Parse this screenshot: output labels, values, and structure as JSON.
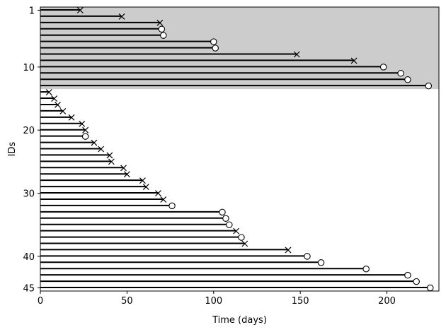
{
  "chart_data": {
    "type": "swimmer",
    "xlabel": "Time (days)",
    "ylabel": "IDs",
    "xlim": [
      0,
      230
    ],
    "ylim": [
      45.5,
      0.5
    ],
    "x_ticks": [
      0,
      50,
      100,
      150,
      200
    ],
    "y_ticks": [
      1,
      10,
      20,
      30,
      40,
      45
    ],
    "shaded_region": {
      "id_from": 1,
      "id_to": 13,
      "color": "#cccccc"
    },
    "marker_legend": {
      "event": "x",
      "censored": "open circle"
    },
    "series": [
      {
        "id": 1,
        "time": 23,
        "marker": "event"
      },
      {
        "id": 2,
        "time": 47,
        "marker": "event"
      },
      {
        "id": 3,
        "time": 69,
        "marker": "event"
      },
      {
        "id": 4,
        "time": 70,
        "marker": "censored"
      },
      {
        "id": 5,
        "time": 71,
        "marker": "censored"
      },
      {
        "id": 6,
        "time": 100,
        "marker": "censored"
      },
      {
        "id": 7,
        "time": 101,
        "marker": "censored"
      },
      {
        "id": 8,
        "time": 148,
        "marker": "event"
      },
      {
        "id": 9,
        "time": 181,
        "marker": "event"
      },
      {
        "id": 10,
        "time": 198,
        "marker": "censored"
      },
      {
        "id": 11,
        "time": 208,
        "marker": "censored"
      },
      {
        "id": 12,
        "time": 212,
        "marker": "censored"
      },
      {
        "id": 13,
        "time": 224,
        "marker": "censored"
      },
      {
        "id": 14,
        "time": 5,
        "marker": "event"
      },
      {
        "id": 15,
        "time": 8,
        "marker": "event"
      },
      {
        "id": 16,
        "time": 10,
        "marker": "event"
      },
      {
        "id": 17,
        "time": 13,
        "marker": "event"
      },
      {
        "id": 18,
        "time": 18,
        "marker": "event"
      },
      {
        "id": 19,
        "time": 24,
        "marker": "event"
      },
      {
        "id": 20,
        "time": 26,
        "marker": "event"
      },
      {
        "id": 21,
        "time": 26,
        "marker": "censored"
      },
      {
        "id": 22,
        "time": 31,
        "marker": "event"
      },
      {
        "id": 23,
        "time": 35,
        "marker": "event"
      },
      {
        "id": 24,
        "time": 40,
        "marker": "event"
      },
      {
        "id": 25,
        "time": 41,
        "marker": "event"
      },
      {
        "id": 26,
        "time": 48,
        "marker": "event"
      },
      {
        "id": 27,
        "time": 50,
        "marker": "event"
      },
      {
        "id": 28,
        "time": 59,
        "marker": "event"
      },
      {
        "id": 29,
        "time": 61,
        "marker": "event"
      },
      {
        "id": 30,
        "time": 68,
        "marker": "event"
      },
      {
        "id": 31,
        "time": 71,
        "marker": "event"
      },
      {
        "id": 32,
        "time": 76,
        "marker": "censored"
      },
      {
        "id": 33,
        "time": 105,
        "marker": "censored"
      },
      {
        "id": 34,
        "time": 107,
        "marker": "censored"
      },
      {
        "id": 35,
        "time": 109,
        "marker": "censored"
      },
      {
        "id": 36,
        "time": 113,
        "marker": "event"
      },
      {
        "id": 37,
        "time": 116,
        "marker": "censored"
      },
      {
        "id": 38,
        "time": 118,
        "marker": "event"
      },
      {
        "id": 39,
        "time": 143,
        "marker": "event"
      },
      {
        "id": 40,
        "time": 154,
        "marker": "censored"
      },
      {
        "id": 41,
        "time": 162,
        "marker": "censored"
      },
      {
        "id": 42,
        "time": 188,
        "marker": "censored"
      },
      {
        "id": 43,
        "time": 212,
        "marker": "censored"
      },
      {
        "id": 44,
        "time": 217,
        "marker": "censored"
      },
      {
        "id": 45,
        "time": 225,
        "marker": "censored"
      }
    ]
  }
}
